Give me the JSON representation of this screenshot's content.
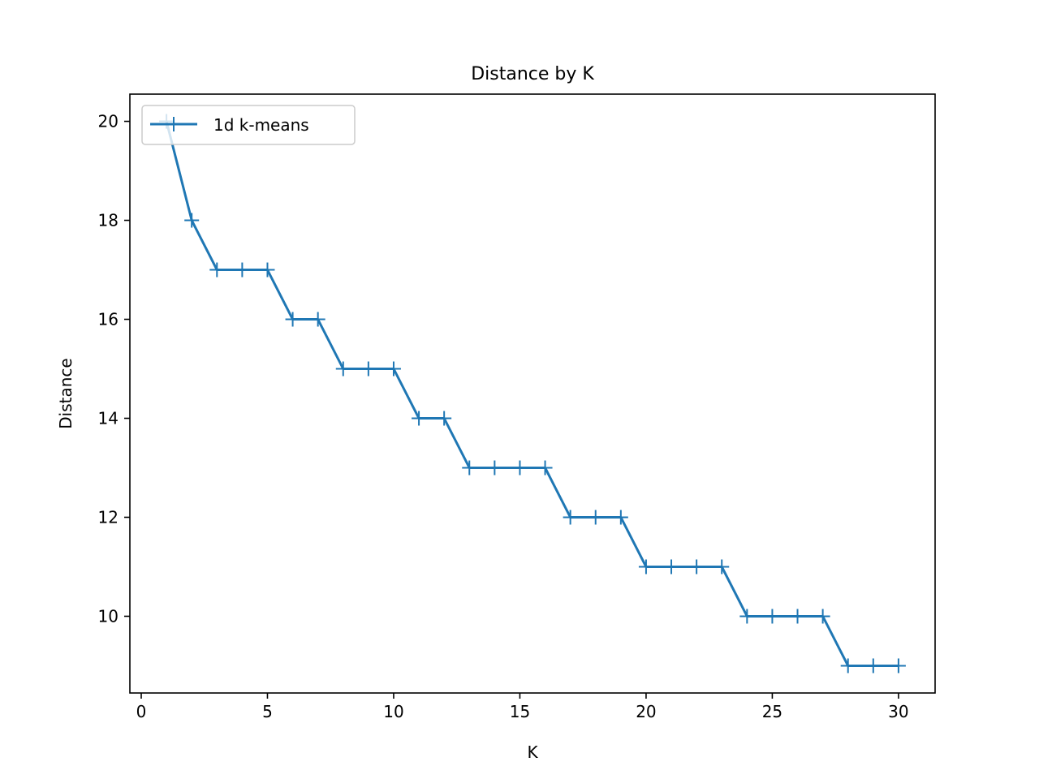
{
  "chart_data": {
    "type": "line",
    "title": "Distance by K",
    "xlabel": "K",
    "ylabel": "Distance",
    "xlim": [
      -0.45,
      31.45
    ],
    "ylim": [
      8.45,
      20.55
    ],
    "xticks": [
      0,
      5,
      10,
      15,
      20,
      25,
      30
    ],
    "yticks": [
      10,
      12,
      14,
      16,
      18,
      20
    ],
    "grid": false,
    "legend": {
      "placement": "upper-left"
    },
    "x": [
      1,
      2,
      3,
      4,
      5,
      6,
      7,
      8,
      9,
      10,
      11,
      12,
      13,
      14,
      15,
      16,
      17,
      18,
      19,
      20,
      21,
      22,
      23,
      24,
      25,
      26,
      27,
      28,
      29,
      30
    ],
    "series": [
      {
        "name": "1d k-means",
        "color": "#1f77b4",
        "marker": "plus",
        "values": [
          20,
          18,
          17,
          17,
          17,
          16,
          16,
          15,
          15,
          15,
          14,
          14,
          13,
          13,
          13,
          13,
          12,
          12,
          12,
          11,
          11,
          11,
          11,
          10,
          10,
          10,
          10,
          9,
          9,
          9
        ]
      }
    ]
  }
}
